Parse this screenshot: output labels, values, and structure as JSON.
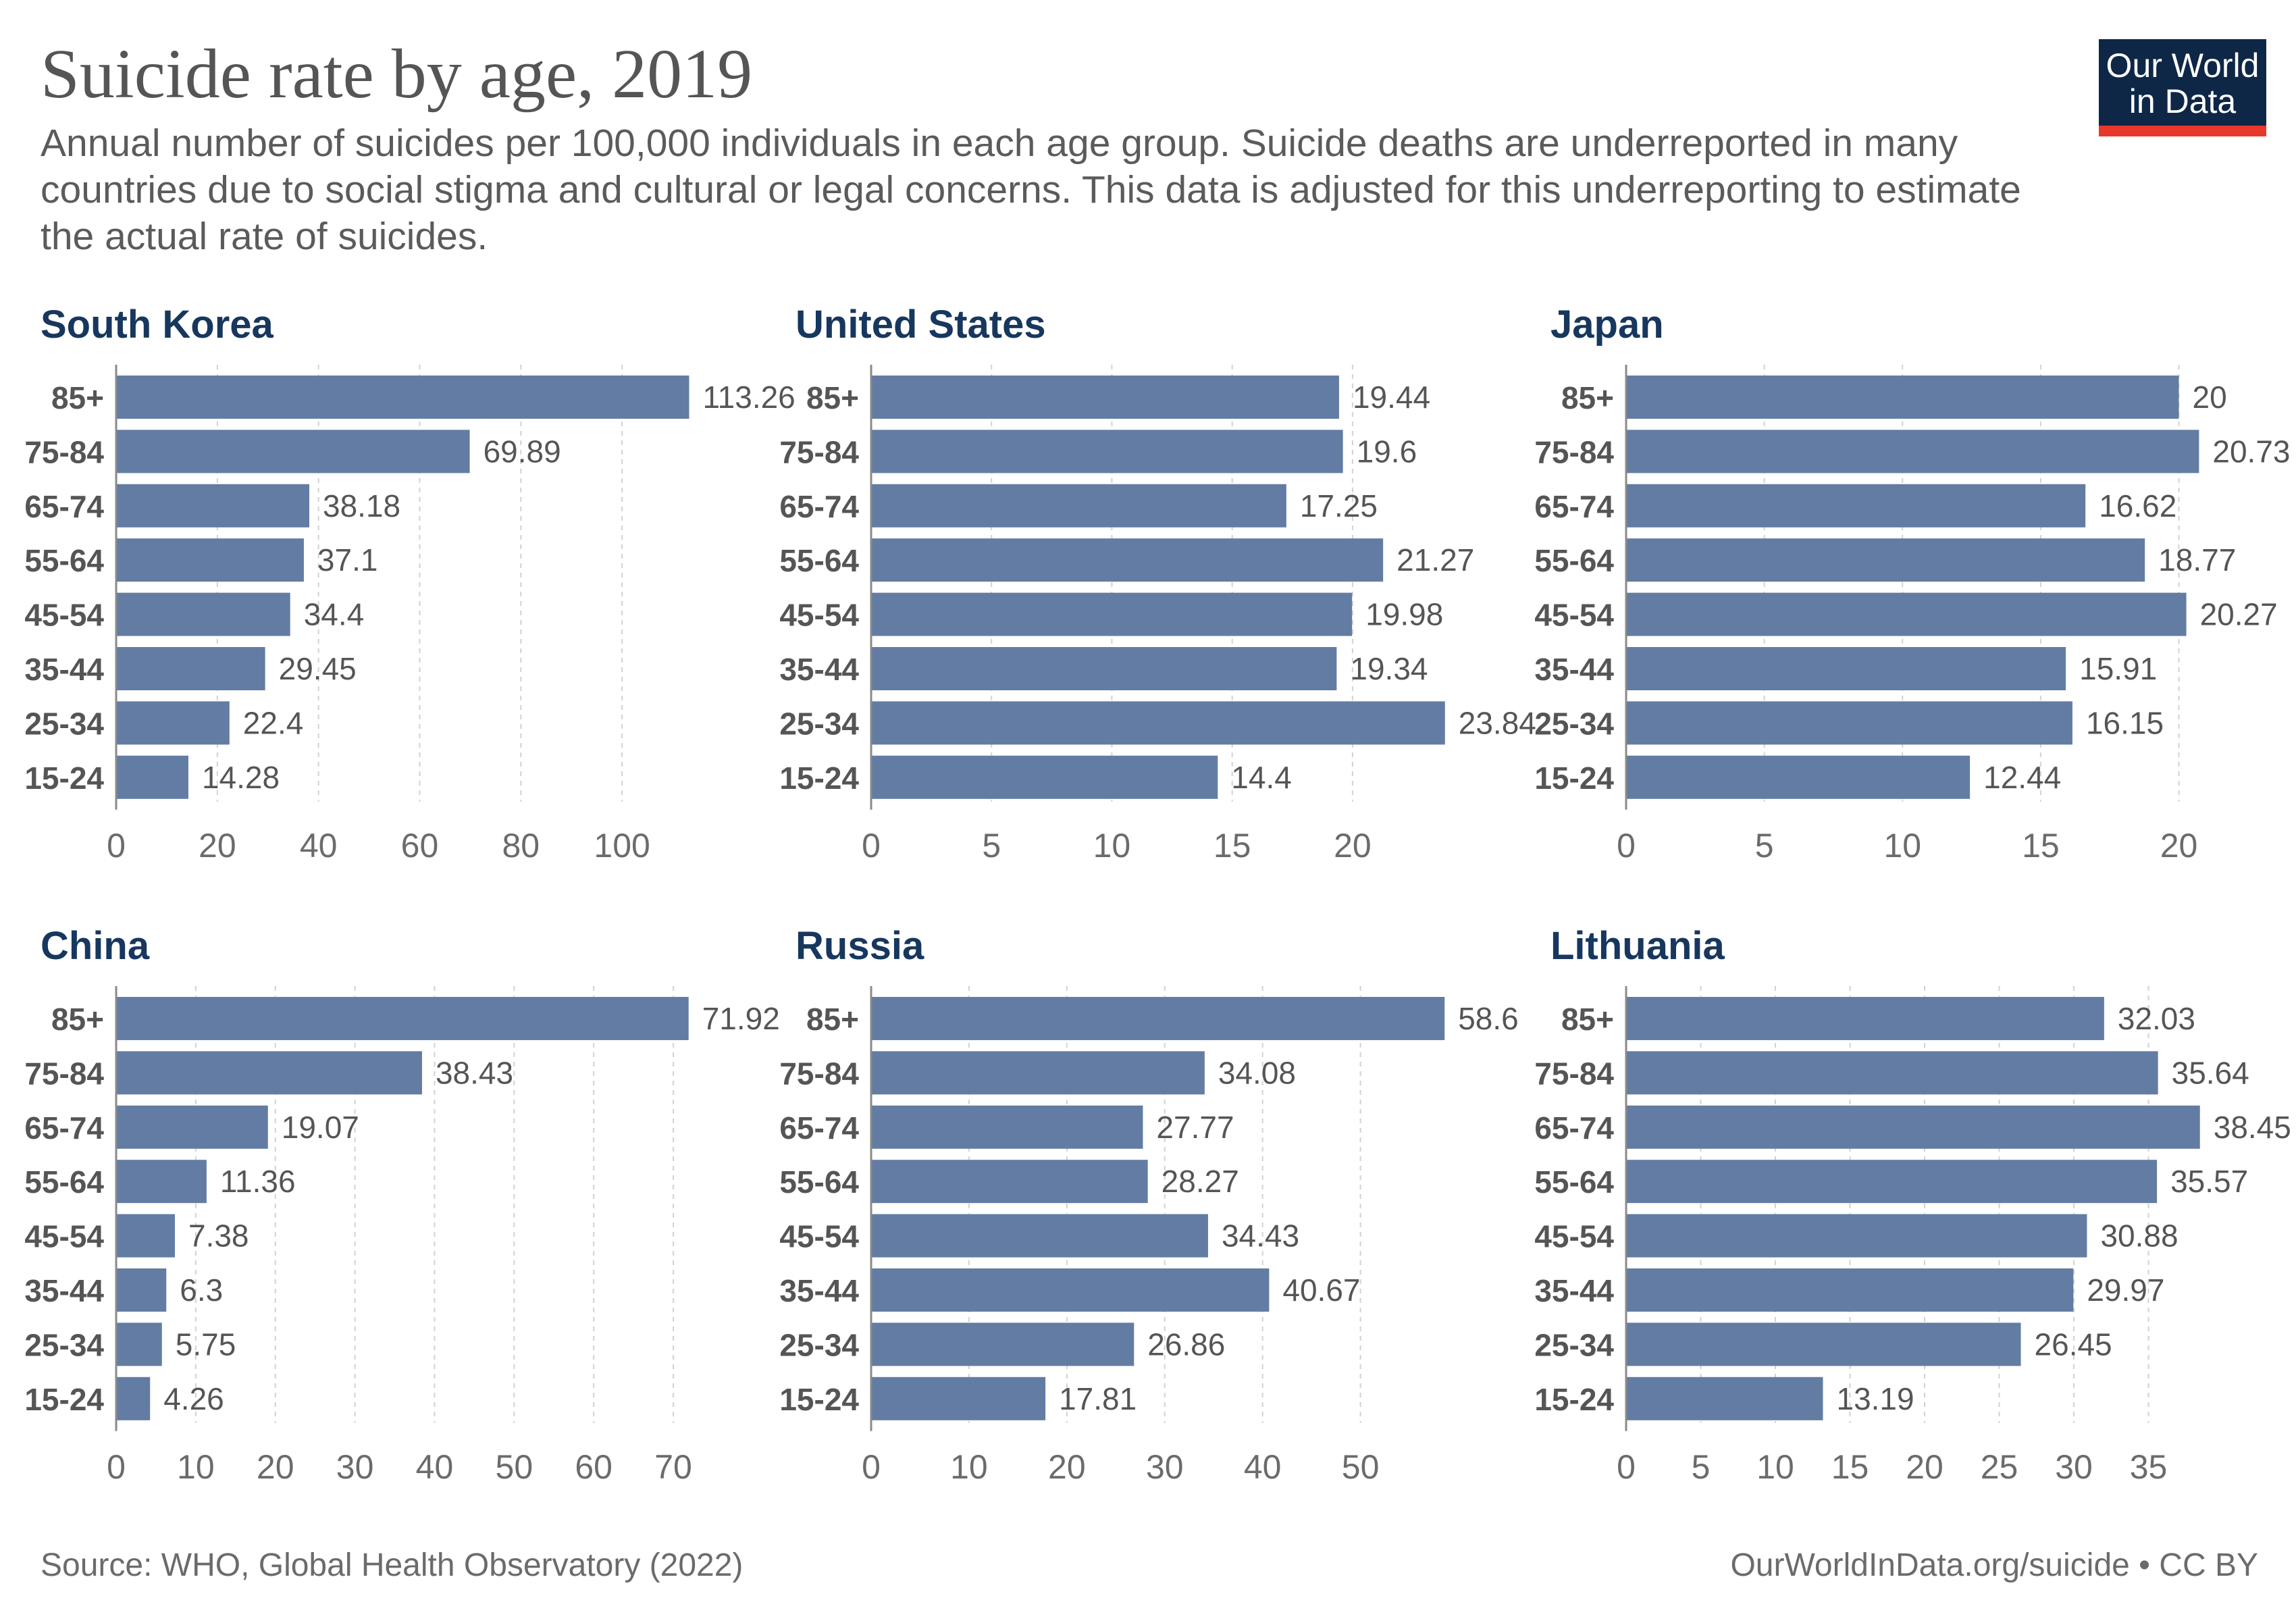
{
  "title": "Suicide rate by age, 2019",
  "subtitle": "Annual number of suicides per 100,000 individuals in each age group. Suicide deaths are underreported in many countries due to social stigma and cultural or legal concerns. This data is adjusted for this underreporting to estimate the actual rate of suicides.",
  "logo": {
    "line1": "Our World",
    "line2": "in Data",
    "bg": "#0f2747",
    "accent": "#e8382c"
  },
  "footer": {
    "source": "Source: WHO, Global Health Observatory (2022)",
    "url": "OurWorldInData.org/suicide • CC BY"
  },
  "colors": {
    "bar": "#637ca3",
    "panel_title": "#17375e",
    "label": "#555555",
    "tick": "#6b6b6b",
    "grid": "#d2d2d2"
  },
  "chart_data": [
    {
      "type": "bar",
      "orientation": "horizontal",
      "title": "South Korea",
      "categories": [
        "85+",
        "75-84",
        "65-74",
        "55-64",
        "45-54",
        "35-44",
        "25-34",
        "15-24"
      ],
      "values": [
        113.26,
        69.89,
        38.18,
        37.1,
        34.4,
        29.45,
        22.4,
        14.28
      ],
      "ticks": [
        0,
        20,
        40,
        60,
        80,
        100
      ],
      "xlim": [
        0,
        118
      ]
    },
    {
      "type": "bar",
      "orientation": "horizontal",
      "title": "United States",
      "categories": [
        "85+",
        "75-84",
        "65-74",
        "55-64",
        "45-54",
        "35-44",
        "25-34",
        "15-24"
      ],
      "values": [
        19.44,
        19.6,
        17.25,
        21.27,
        19.98,
        19.34,
        23.84,
        14.4
      ],
      "ticks": [
        0,
        5,
        10,
        15,
        20
      ],
      "xlim": [
        0,
        24.8
      ]
    },
    {
      "type": "bar",
      "orientation": "horizontal",
      "title": "Japan",
      "categories": [
        "85+",
        "75-84",
        "65-74",
        "55-64",
        "45-54",
        "35-44",
        "25-34",
        "15-24"
      ],
      "values": [
        20,
        20.73,
        16.62,
        18.77,
        20.27,
        15.91,
        16.15,
        12.44
      ],
      "ticks": [
        0,
        5,
        10,
        15,
        20
      ],
      "xlim": [
        0,
        21.6
      ]
    },
    {
      "type": "bar",
      "orientation": "horizontal",
      "title": "China",
      "categories": [
        "85+",
        "75-84",
        "65-74",
        "55-64",
        "45-54",
        "35-44",
        "25-34",
        "15-24"
      ],
      "values": [
        71.92,
        38.43,
        19.07,
        11.36,
        7.38,
        6.3,
        5.75,
        4.26
      ],
      "ticks": [
        0,
        10,
        20,
        30,
        40,
        50,
        60,
        70
      ],
      "xlim": [
        0,
        75
      ]
    },
    {
      "type": "bar",
      "orientation": "horizontal",
      "title": "Russia",
      "categories": [
        "85+",
        "75-84",
        "65-74",
        "55-64",
        "45-54",
        "35-44",
        "25-34",
        "15-24"
      ],
      "values": [
        58.6,
        34.08,
        27.77,
        28.27,
        34.43,
        40.67,
        26.86,
        17.81
      ],
      "ticks": [
        0,
        10,
        20,
        30,
        40,
        50
      ],
      "xlim": [
        0,
        61
      ]
    },
    {
      "type": "bar",
      "orientation": "horizontal",
      "title": "Lithuania",
      "categories": [
        "85+",
        "75-84",
        "65-74",
        "55-64",
        "45-54",
        "35-44",
        "25-34",
        "15-24"
      ],
      "values": [
        32.03,
        35.64,
        38.45,
        35.57,
        30.88,
        29.97,
        26.45,
        13.19
      ],
      "ticks": [
        0,
        5,
        10,
        15,
        20,
        25,
        30,
        35
      ],
      "xlim": [
        0,
        40
      ]
    }
  ]
}
